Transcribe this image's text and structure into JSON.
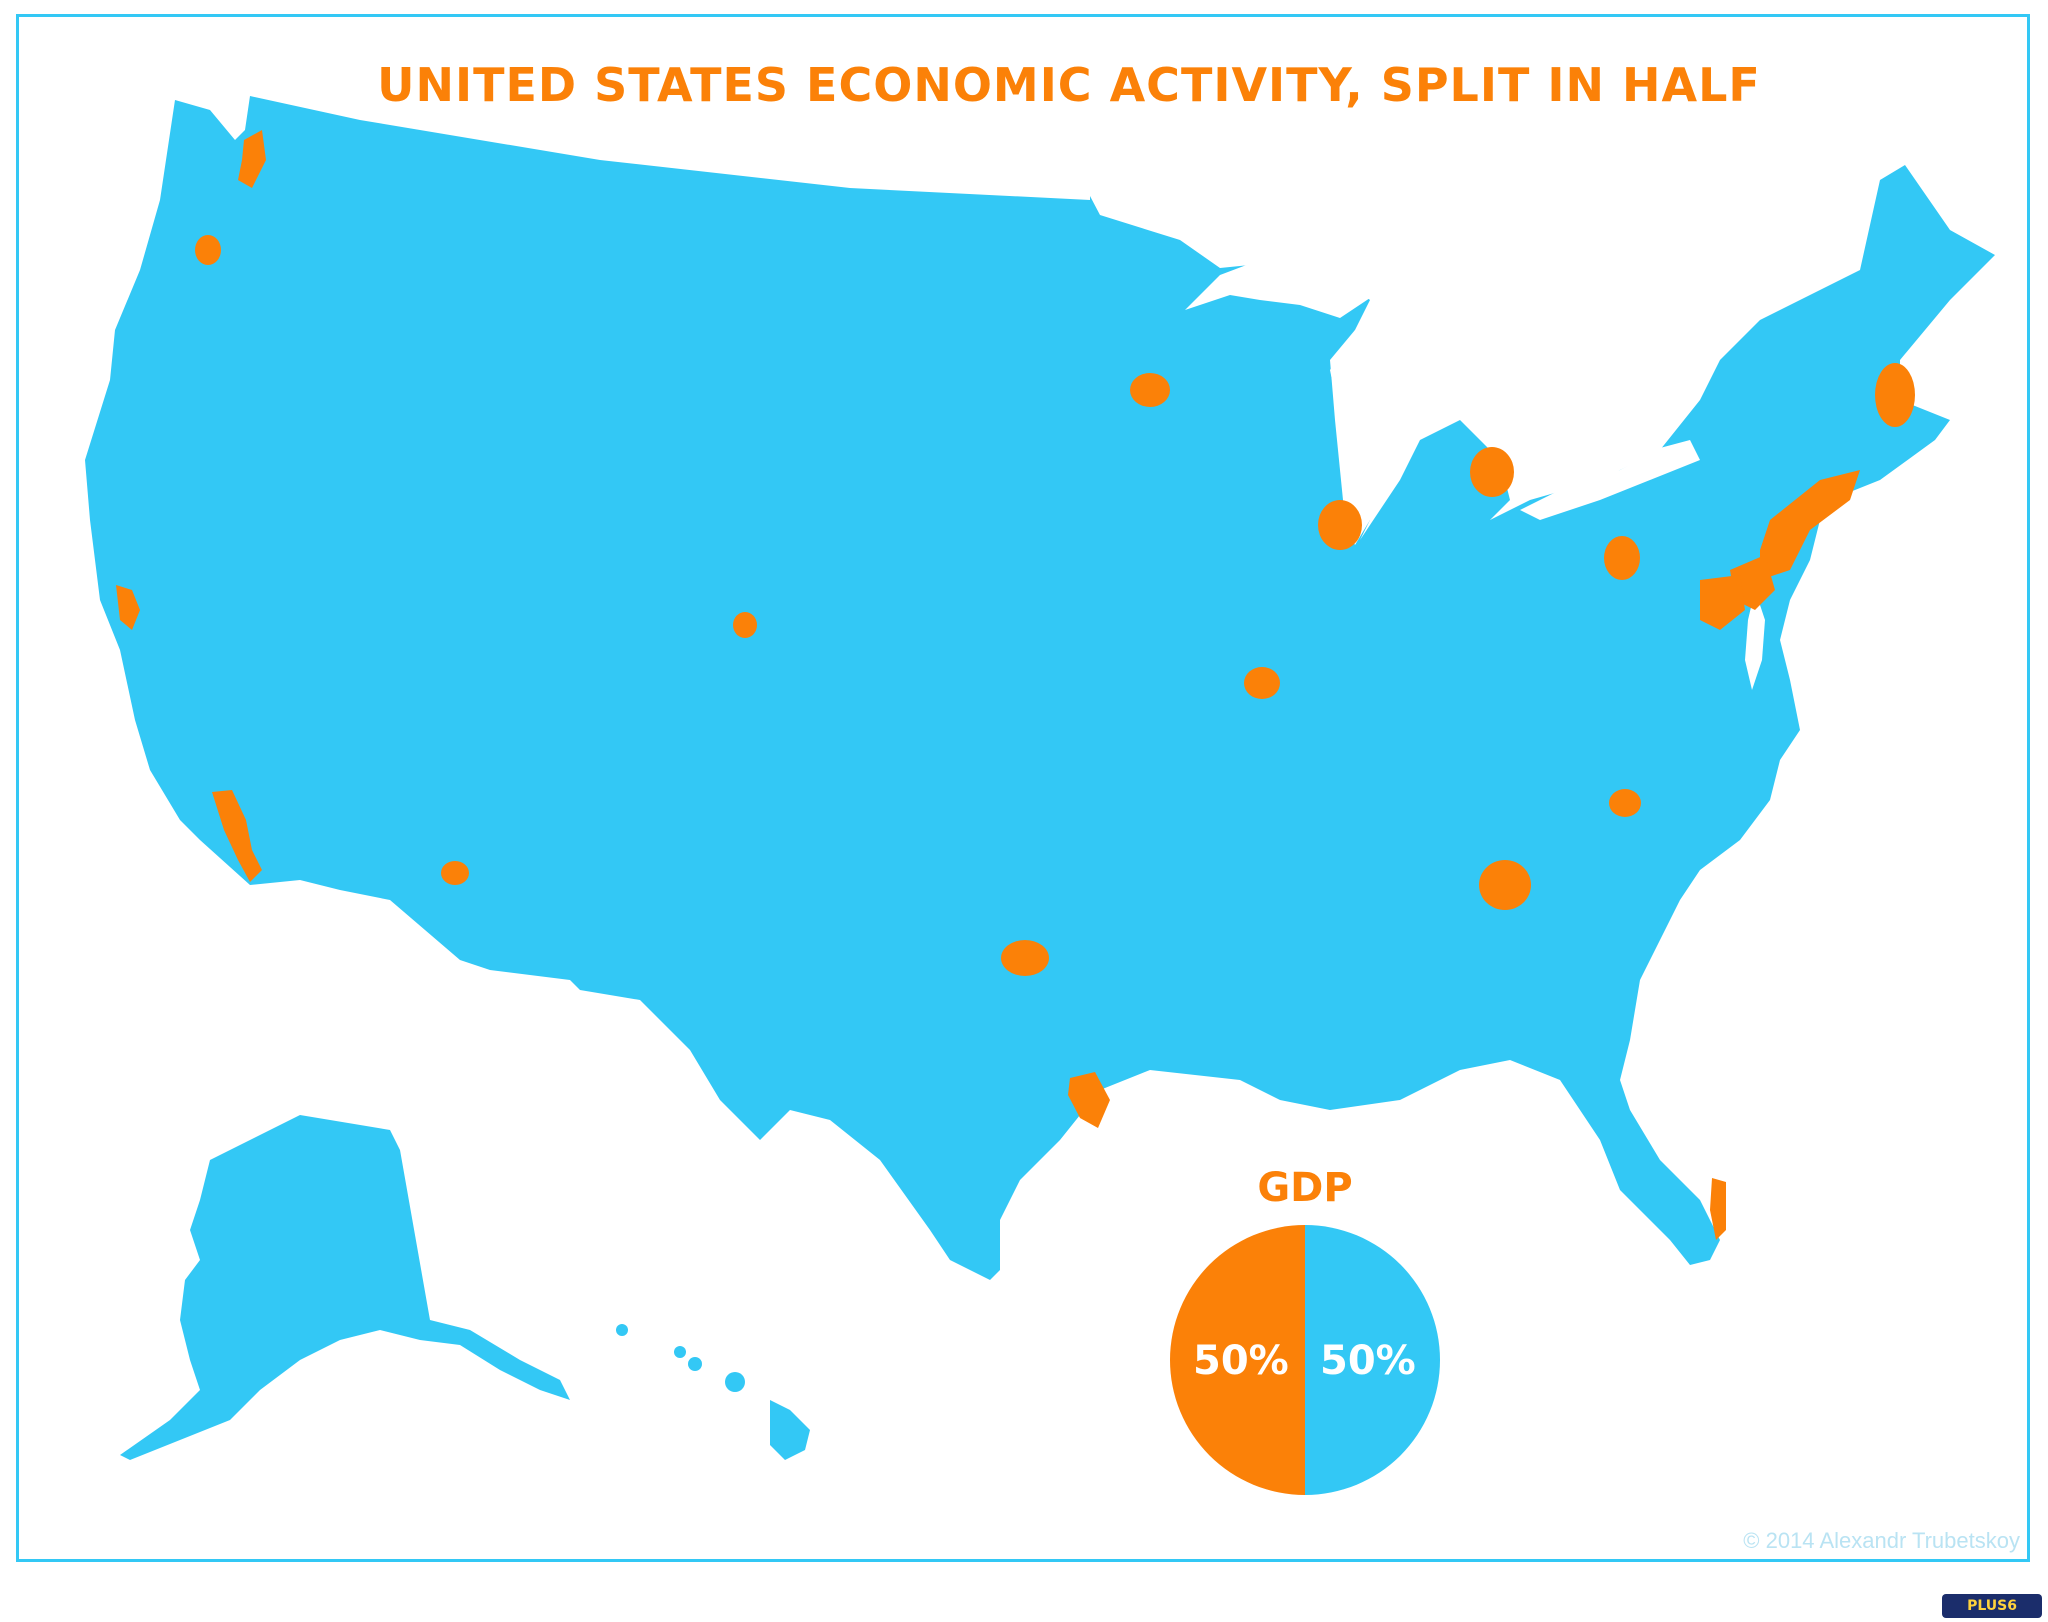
{
  "title": "UNITED STATES ECONOMIC ACTIVITY, SPLIT IN HALF",
  "credit": "© 2014 Alexandr Trubetskoy",
  "watermark": "PLUS6",
  "colors": {
    "land": "#33c8f5",
    "metro": "#fb8108",
    "background": "#ffffff"
  },
  "chart_data": {
    "type": "pie",
    "title": "GDP",
    "slices": [
      {
        "label": "50%",
        "value": 50,
        "color": "#fb8108"
      },
      {
        "label": "50%",
        "value": 50,
        "color": "#33c8f5"
      }
    ]
  }
}
